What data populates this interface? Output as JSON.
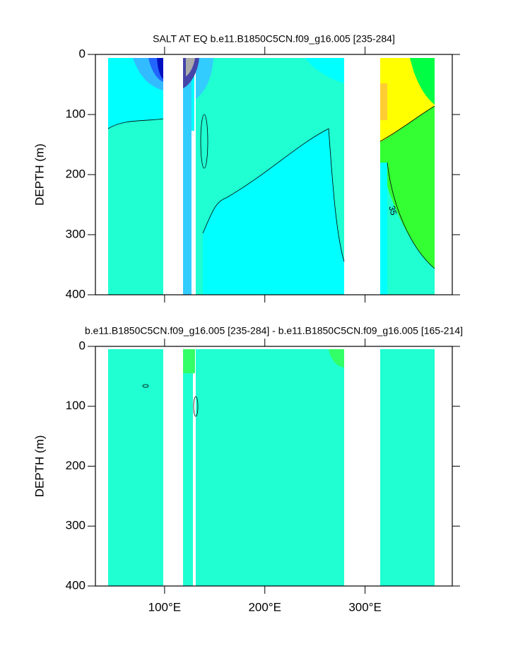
{
  "chart_data": [
    {
      "type": "contour",
      "title": "SALT AT EQ b.e11.B1850C5CN.f09_g16.005 [235-284]",
      "y_label": "DEPTH (m)",
      "xlim": [
        31,
        387
      ],
      "xticks": [
        100,
        200,
        300
      ],
      "ylim": [
        0,
        400
      ],
      "y_reversed": true,
      "yticks": [
        0,
        100,
        200,
        300,
        400
      ],
      "annotations": [
        "35"
      ]
    },
    {
      "type": "contour",
      "title": "b.e11.B1850C5CN.f09_g16.005 [235-284] - b.e11.B1850C5CN.f09_g16.005 [165-214]",
      "y_label": "DEPTH (m)",
      "xlim": [
        31,
        387
      ],
      "xticks": [
        {
          "value": 100,
          "label": "100°E"
        },
        {
          "value": 200,
          "label": "200°E"
        },
        {
          "value": 300,
          "label": "300°E"
        }
      ],
      "ylim": [
        0,
        400
      ],
      "y_reversed": true,
      "yticks": [
        0,
        100,
        200,
        300,
        400
      ]
    }
  ]
}
